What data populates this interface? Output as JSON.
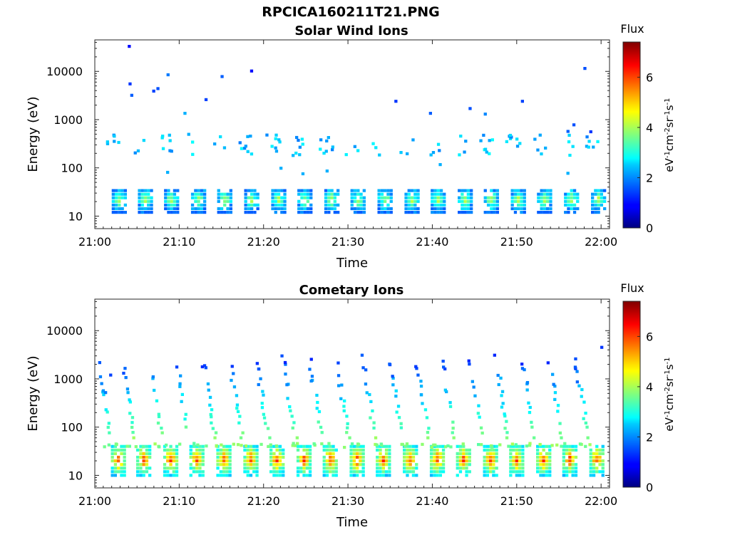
{
  "page_title": "RPCICA160211T21.PNG",
  "chart_data": [
    {
      "type": "heatmap",
      "title": "Solar Wind Ions",
      "xlabel": "Time",
      "ylabel": "Energy (eV)",
      "xlim": [
        "21:00",
        "22:00"
      ],
      "x_ticks": [
        "21:00",
        "21:10",
        "21:20",
        "21:30",
        "21:40",
        "21:50",
        "22:00"
      ],
      "yscale": "log",
      "ylim": [
        5.5,
        45000
      ],
      "y_ticks": [
        10,
        100,
        1000,
        10000
      ],
      "y_tick_labels": [
        "10",
        "100",
        "1000",
        "10000"
      ],
      "colorbar": {
        "title": "Flux",
        "label": "eV-1cm-2sr-1s-1",
        "range": [
          0,
          7.4
        ],
        "ticks": [
          0,
          2,
          4,
          6
        ],
        "tick_labels": [
          "0",
          "2",
          "4",
          "6"
        ],
        "colormap": "jet"
      },
      "band_start_minutes": [
        2.0,
        5.1,
        8.2,
        11.4,
        14.5,
        17.7,
        20.9,
        24.0,
        27.2,
        30.3,
        33.5,
        36.7,
        39.8,
        43.0,
        46.1,
        49.3,
        52.4,
        55.6,
        58.8
      ],
      "low_energy_band": {
        "energy_range_eV": [
          12,
          40
        ],
        "peak_flux": 4.6
      },
      "mid_energy_band": {
        "energy_range_eV": [
          180,
          500
        ],
        "typical_flux": 2.4
      },
      "sparse_high_energy_points": [
        {
          "t": 3.9,
          "e": 33000,
          "f": 1.0
        },
        {
          "t": 4.0,
          "e": 5500,
          "f": 1.3
        },
        {
          "t": 4.2,
          "e": 3200,
          "f": 1.6
        },
        {
          "t": 6.8,
          "e": 3900,
          "f": 1.4
        },
        {
          "t": 7.3,
          "e": 4400,
          "f": 1.5
        },
        {
          "t": 8.5,
          "e": 8500,
          "f": 1.8
        },
        {
          "t": 10.5,
          "e": 1350,
          "f": 2.2
        },
        {
          "t": 13.0,
          "e": 2600,
          "f": 1.4
        },
        {
          "t": 14.9,
          "e": 7800,
          "f": 1.6
        },
        {
          "t": 18.4,
          "e": 10200,
          "f": 1.0
        },
        {
          "t": 35.5,
          "e": 2400,
          "f": 1.3
        },
        {
          "t": 39.6,
          "e": 1350,
          "f": 1.6
        },
        {
          "t": 44.3,
          "e": 1700,
          "f": 1.5
        },
        {
          "t": 46.1,
          "e": 1300,
          "f": 1.9
        },
        {
          "t": 50.5,
          "e": 2400,
          "f": 1.4
        },
        {
          "t": 55.9,
          "e": 570,
          "f": 1.6
        },
        {
          "t": 56.6,
          "e": 780,
          "f": 1.5
        },
        {
          "t": 57.9,
          "e": 11500,
          "f": 1.5
        },
        {
          "t": 58.6,
          "e": 560,
          "f": 1.3
        }
      ]
    },
    {
      "type": "heatmap",
      "title": "Cometary Ions",
      "xlabel": "Time",
      "ylabel": "Energy (eV)",
      "xlim": [
        "21:00",
        "22:00"
      ],
      "x_ticks": [
        "21:00",
        "21:10",
        "21:20",
        "21:30",
        "21:40",
        "21:50",
        "22:00"
      ],
      "yscale": "log",
      "ylim": [
        5.5,
        45000
      ],
      "y_ticks": [
        10,
        100,
        1000,
        10000
      ],
      "y_tick_labels": [
        "10",
        "100",
        "1000",
        "10000"
      ],
      "colorbar": {
        "title": "Flux",
        "label": "eV-1cm-2sr-1s-1",
        "range": [
          0,
          7.4
        ],
        "ticks": [
          0,
          2,
          4,
          6
        ],
        "tick_labels": [
          "0",
          "2",
          "4",
          "6"
        ],
        "colormap": "jet"
      },
      "band_start_minutes": [
        1.9,
        4.9,
        8.1,
        11.2,
        14.4,
        17.6,
        20.7,
        23.9,
        27.0,
        30.2,
        33.3,
        36.5,
        39.7,
        42.8,
        46.0,
        49.1,
        52.3,
        55.4,
        58.6
      ],
      "low_energy_band": {
        "energy_range_eV": [
          10,
          45
        ],
        "peak_flux": 6.6
      },
      "rising_streaks": {
        "energy_range_eV": [
          60,
          3000
        ],
        "typical_flux": 2.4
      },
      "sparse_high_energy_points": [
        {
          "t": 1.1,
          "e": 520,
          "f": 1.8
        },
        {
          "t": 1.7,
          "e": 1200,
          "f": 1.4
        },
        {
          "t": 22.0,
          "e": 3000,
          "f": 1.5
        },
        {
          "t": 31.5,
          "e": 3100,
          "f": 1.6
        },
        {
          "t": 47.2,
          "e": 3100,
          "f": 1.2
        },
        {
          "t": 56.8,
          "e": 2600,
          "f": 1.5
        },
        {
          "t": 59.9,
          "e": 4500,
          "f": 1.3
        }
      ]
    }
  ]
}
